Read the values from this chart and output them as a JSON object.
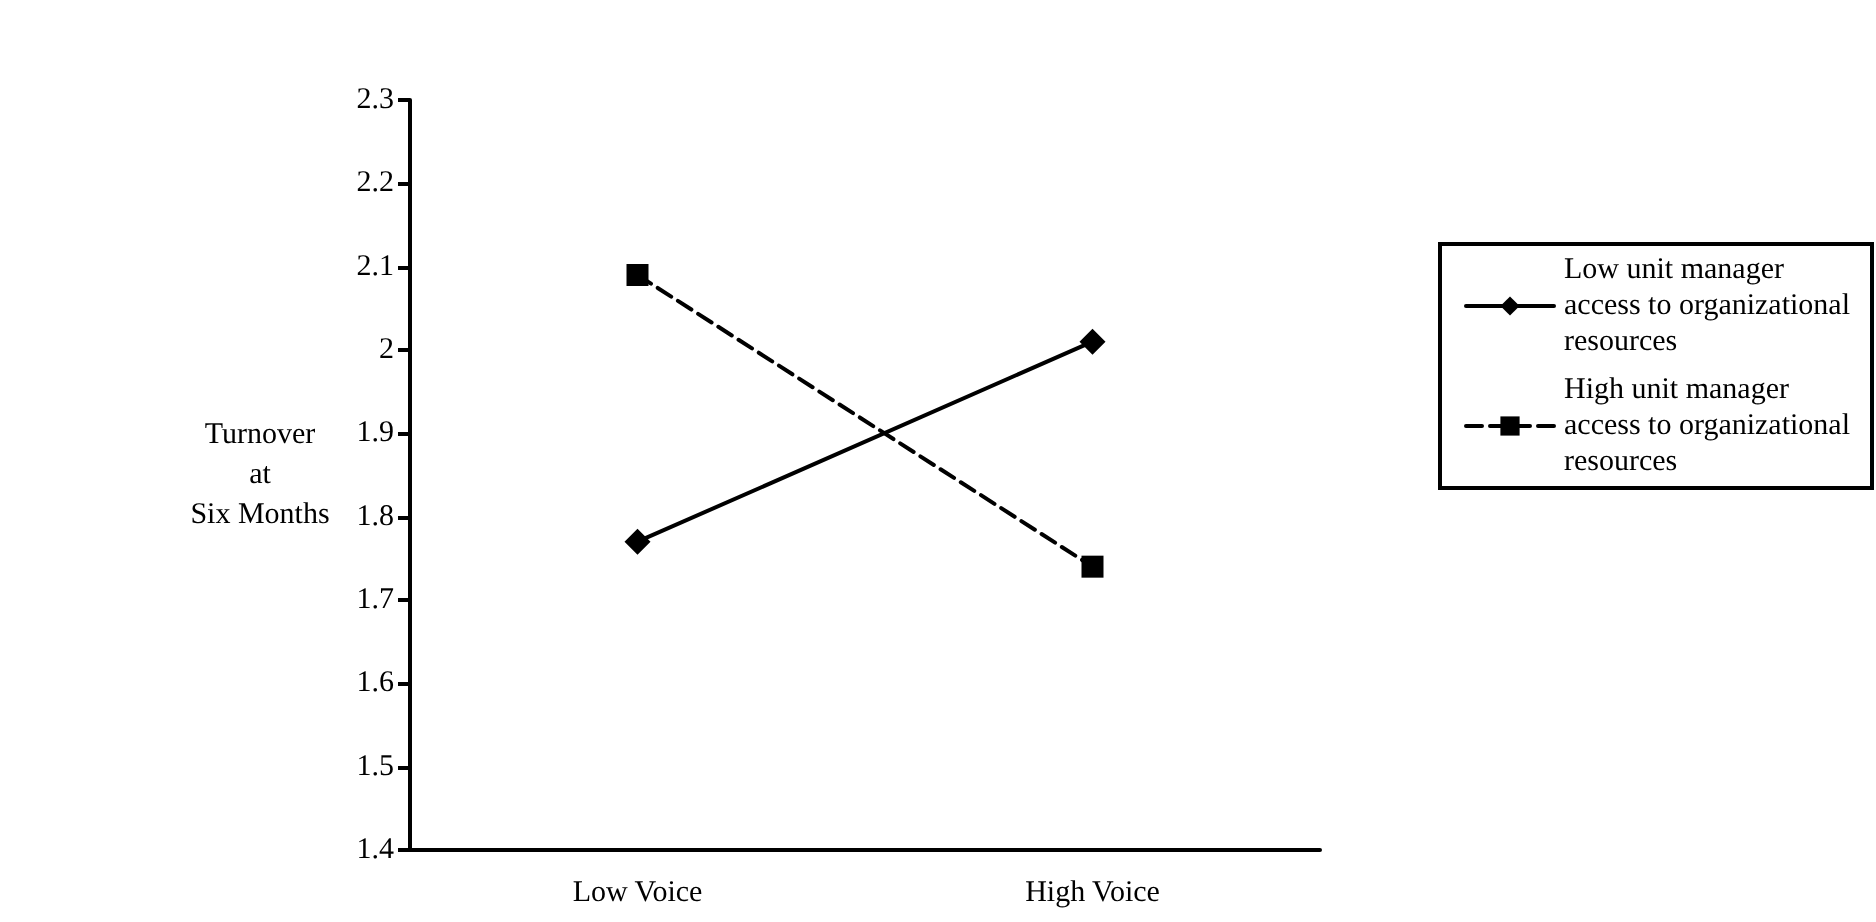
{
  "chart_data": {
    "type": "line",
    "ylabel": "Turnover\nat\nSix Months",
    "categories": [
      "Low Voice",
      "High Voice"
    ],
    "series": [
      {
        "name": "Low unit manager access to organizational resources",
        "color": "#000000",
        "values": [
          1.77,
          2.01
        ],
        "marker": "diamond",
        "line_style": "solid"
      },
      {
        "name": "High unit manager access to organizational resources",
        "color": "#000000",
        "values": [
          2.09,
          1.74
        ],
        "marker": "square",
        "line_style": "dashed"
      }
    ],
    "ylim": [
      1.4,
      2.3
    ],
    "yticks": [
      1.4,
      1.5,
      1.6,
      1.7,
      1.8,
      1.9,
      2,
      2.1,
      2.2,
      2.3
    ],
    "grid": false,
    "legend": "right"
  }
}
